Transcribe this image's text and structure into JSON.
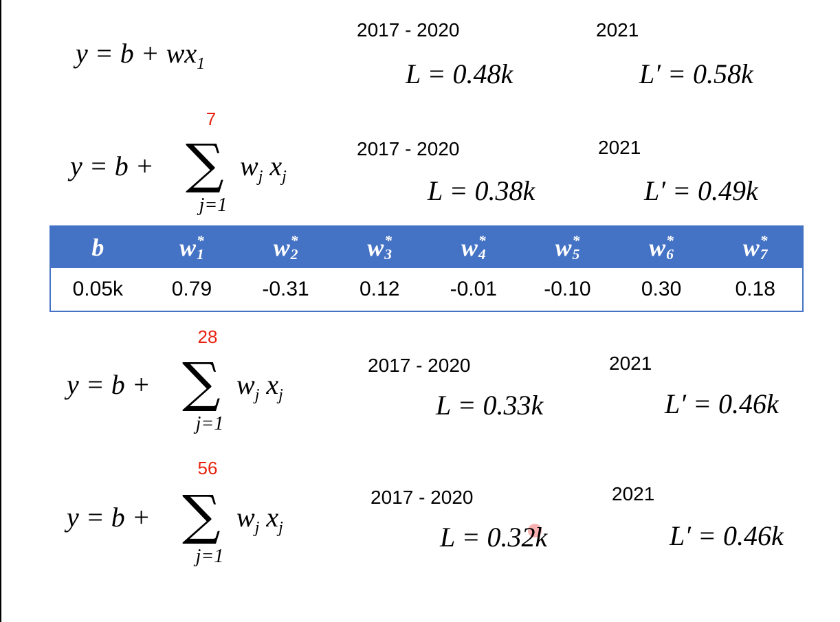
{
  "models": [
    {
      "formula": {
        "lhs": "y = b + wx",
        "subscript": "1"
      },
      "train_period": "2017 - 2020",
      "train_loss": "L = 0.48k",
      "test_period": "2021",
      "test_loss": "L′ = 0.58k"
    },
    {
      "formula": {
        "lhs": "y = b +",
        "operator": "∑",
        "upper": "7",
        "lower": "j=1",
        "w": "w",
        "x": "x",
        "index": "j"
      },
      "train_period": "2017 - 2020",
      "train_loss": "L = 0.38k",
      "test_period": "2021",
      "test_loss": "L′ = 0.49k"
    },
    {
      "formula": {
        "lhs": "y = b +",
        "operator": "∑",
        "upper": "28",
        "lower": "j=1",
        "w": "w",
        "x": "x",
        "index": "j"
      },
      "train_period": "2017 - 2020",
      "train_loss": "L = 0.33k",
      "test_period": "2021",
      "test_loss": "L′ = 0.46k"
    },
    {
      "formula": {
        "lhs": "y = b +",
        "operator": "∑",
        "upper": "56",
        "lower": "j=1",
        "w": "w",
        "x": "x",
        "index": "j"
      },
      "train_period": "2017 - 2020",
      "train_loss": "L = 0.32k",
      "test_period": "2021",
      "test_loss": "L′ = 0.46k"
    }
  ],
  "table": {
    "header": [
      {
        "base": "b"
      },
      {
        "base": "w",
        "sub": "1",
        "sup": "*"
      },
      {
        "base": "w",
        "sub": "2",
        "sup": "*"
      },
      {
        "base": "w",
        "sub": "3",
        "sup": "*"
      },
      {
        "base": "w",
        "sub": "4",
        "sup": "*"
      },
      {
        "base": "w",
        "sub": "5",
        "sup": "*"
      },
      {
        "base": "w",
        "sub": "6",
        "sup": "*"
      },
      {
        "base": "w",
        "sub": "7",
        "sup": "*"
      }
    ],
    "row": [
      "0.05k",
      "0.79",
      "-0.31",
      "0.12",
      "-0.01",
      "-0.10",
      "0.30",
      "0.18"
    ]
  }
}
